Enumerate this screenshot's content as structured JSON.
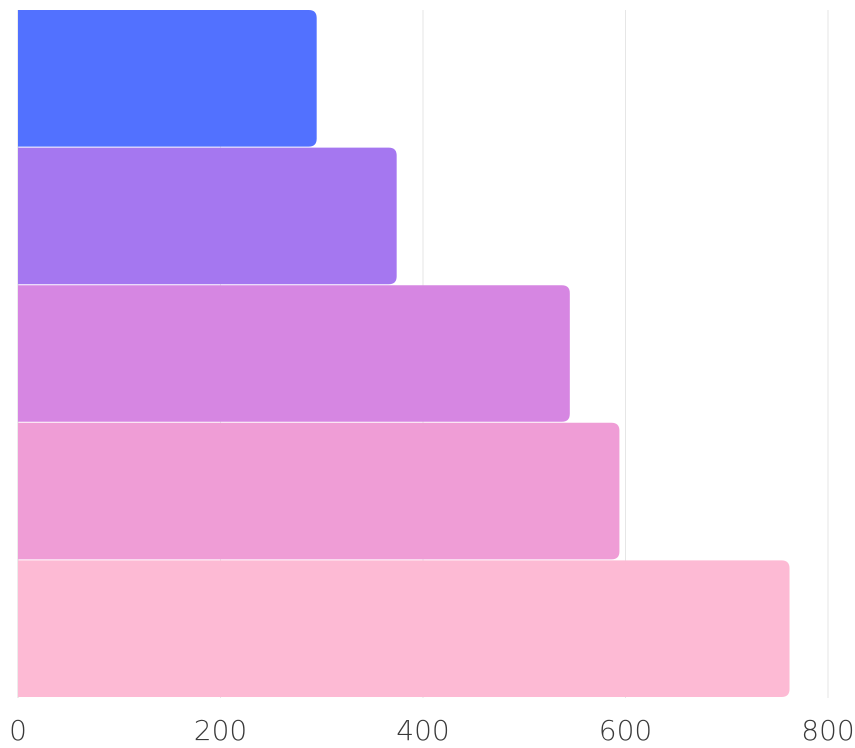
{
  "chart_data": {
    "type": "bar",
    "orientation": "horizontal",
    "title": "",
    "xlabel": "",
    "ylabel": "",
    "xlim": [
      0,
      800
    ],
    "x_ticks": [
      0,
      200,
      400,
      600,
      800
    ],
    "x_tick_labels": [
      "0",
      "200",
      "400",
      "600",
      "800"
    ],
    "grid": "vertical",
    "legend": "none",
    "values": [
      295,
      374,
      545,
      594,
      762
    ],
    "colors": [
      "#5271ff",
      "#a577f0",
      "#d686e2",
      "#ef9dd6",
      "#fdbad4"
    ]
  },
  "colors": {
    "grid": "#e6e6e6",
    "baseline": "#d9d9d9",
    "tick_text": "#3a3a3a",
    "background": "#ffffff"
  }
}
